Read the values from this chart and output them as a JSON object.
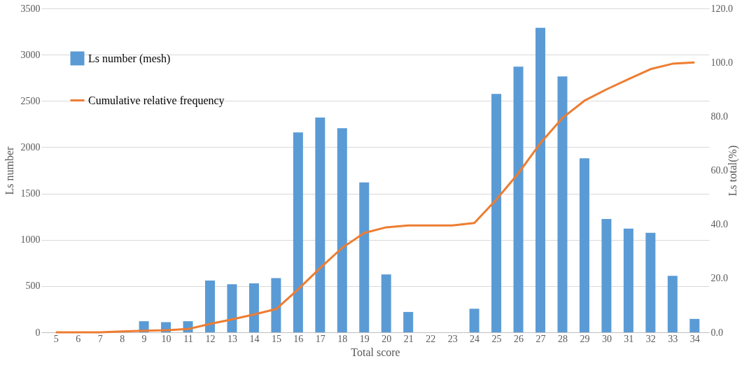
{
  "chart_data": {
    "type": "bar",
    "xlabel": "Total score",
    "ylabel": "Ls number",
    "y2label": "Ls total(%)",
    "categories": [
      "5",
      "6",
      "7",
      "8",
      "9",
      "10",
      "11",
      "12",
      "13",
      "14",
      "15",
      "16",
      "17",
      "18",
      "19",
      "20",
      "21",
      "22",
      "23",
      "24",
      "25",
      "26",
      "27",
      "28",
      "29",
      "30",
      "31",
      "32",
      "33",
      "34"
    ],
    "series": [
      {
        "name": "Ls number (mesh)",
        "color": "#5b9bd5",
        "values": [
          0,
          0,
          0,
          0,
          120,
          110,
          120,
          560,
          520,
          530,
          585,
          2160,
          2320,
          2205,
          1620,
          625,
          220,
          0,
          0,
          255,
          2575,
          2870,
          3290,
          2765,
          1880,
          1225,
          1120,
          1075,
          610,
          145
        ]
      },
      {
        "name": "Cumulative relative frequency",
        "type": "line",
        "axis": "y2",
        "color": "#ed7d31",
        "values": [
          0,
          0,
          0,
          0.3,
          0.6,
          0.8,
          1.2,
          3.1,
          4.8,
          6.6,
          8.6,
          15.9,
          23.8,
          31.3,
          36.8,
          38.9,
          39.6,
          39.6,
          39.6,
          40.5,
          49.2,
          58.9,
          70.1,
          79.4,
          85.8,
          90.0,
          93.8,
          97.5,
          99.5,
          100
        ]
      }
    ],
    "ylim": [
      0,
      3500
    ],
    "yticks": [
      0,
      500,
      1000,
      1500,
      2000,
      2500,
      3000,
      3500
    ],
    "y2lim": [
      0,
      120
    ],
    "y2ticks": [
      {
        "value": 0,
        "label": "0.0"
      },
      {
        "value": 20,
        "label": "20.0"
      },
      {
        "value": 40,
        "label": "40.0"
      },
      {
        "value": 60,
        "label": "60.0"
      },
      {
        "value": 80,
        "label": "80.0"
      },
      {
        "value": 100,
        "label": "100.0"
      },
      {
        "value": 120,
        "label": "120.0"
      }
    ],
    "grid": "y",
    "legend": "top left",
    "line_style": "solid",
    "marker": "none"
  }
}
